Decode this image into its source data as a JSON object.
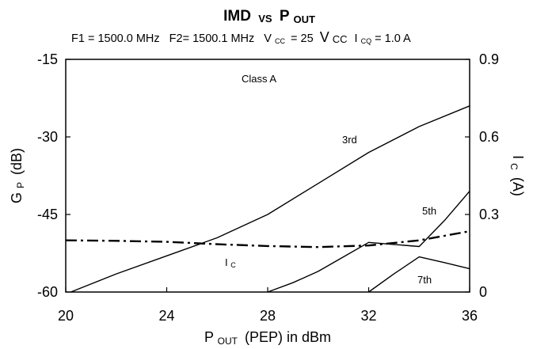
{
  "chart_data": {
    "type": "line",
    "title": {
      "main": "IMD",
      "vs": "VS",
      "p": "P",
      "p_sub": "OUT"
    },
    "subtitle": {
      "f1": "F1 = 1500.0 MHz",
      "f2": "F2= 1500.1 MHz",
      "vcc_label": "V",
      "vcc_sub": "CC",
      "vcc_value": "= 25",
      "vcc_unit": "V",
      "vcc_unit_sub": "CC",
      "icq_label": "I",
      "icq_sub": "CQ",
      "icq_value": "= 1.0 A"
    },
    "xaxis": {
      "label_main": "P",
      "label_sub": "OUT",
      "label_rest": "(PEP) in dBm",
      "range": [
        20,
        36
      ],
      "ticks": [
        20,
        24,
        28,
        32,
        36
      ],
      "tick_labels": [
        "20",
        "24",
        "28",
        "32",
        "36"
      ]
    },
    "yaxis_left": {
      "label_main": "G",
      "label_sub": "P",
      "label_rest": "(dB)",
      "range": [
        -60,
        -15
      ],
      "ticks": [
        -60,
        -45,
        -30,
        -15
      ],
      "tick_labels": [
        "-60",
        "-45",
        "-30",
        "-15"
      ]
    },
    "yaxis_right": {
      "label_main": "I",
      "label_sub": "C",
      "label_rest": "(A)",
      "range": [
        0,
        0.9
      ],
      "ticks": [
        0,
        0.3,
        0.6,
        0.9
      ],
      "tick_labels": [
        "0",
        "0.3",
        "0.6",
        "0.9"
      ]
    },
    "grid": false,
    "legend": "none",
    "annotations": {
      "class": "Class A",
      "ic_main": "I",
      "ic_sub": "C"
    },
    "series": [
      {
        "name": "3rd",
        "axis": "left",
        "style": "solid",
        "x": [
          20.2,
          22,
          24,
          26,
          28,
          30,
          32,
          34,
          36
        ],
        "y": [
          -60,
          -56.5,
          -53,
          -49.5,
          -45,
          -39,
          -33,
          -28,
          -24
        ]
      },
      {
        "name": "5th",
        "axis": "left",
        "style": "solid",
        "x": [
          28,
          29,
          30,
          31,
          32,
          33,
          34,
          35,
          36
        ],
        "y": [
          -60,
          -58.2,
          -56,
          -53.2,
          -50.4,
          -50.8,
          -51.2,
          -46.2,
          -40.5
        ]
      },
      {
        "name": "7th",
        "axis": "left",
        "style": "solid",
        "x": [
          32,
          33,
          34,
          35,
          36
        ],
        "y": [
          -60,
          -56.5,
          -53.2,
          -54.3,
          -55.5
        ]
      },
      {
        "name": "IC",
        "axis": "right",
        "style": "dash-dot",
        "x": [
          20,
          22,
          24,
          26,
          28,
          30,
          32,
          34,
          36
        ],
        "y": [
          0.2,
          0.198,
          0.194,
          0.185,
          0.178,
          0.174,
          0.18,
          0.2,
          0.235
        ]
      }
    ]
  }
}
